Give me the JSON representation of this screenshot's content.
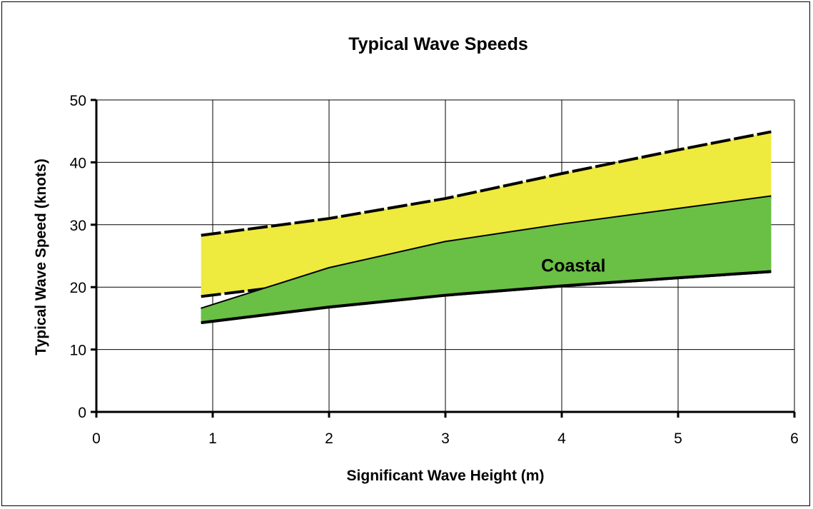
{
  "chart_data": {
    "type": "area",
    "title": "Typical Wave Speeds",
    "xlabel": "Significant Wave Height (m)",
    "ylabel": "Typical Wave Speed (knots)",
    "xlim": [
      0,
      6
    ],
    "ylim": [
      0,
      50
    ],
    "xticks": [
      "0",
      "1",
      "2",
      "3",
      "4",
      "5",
      "6"
    ],
    "yticks": [
      "0",
      "10",
      "20",
      "30",
      "40",
      "50"
    ],
    "grid": true,
    "legend": "none",
    "annotations": [
      {
        "text": "Coastal",
        "x": 4.1,
        "y": 23.5
      }
    ],
    "series": [
      {
        "style": "band",
        "color": "#eeea3e",
        "upper": {
          "x": [
            0.9,
            2.0,
            3.0,
            4.0,
            5.0,
            5.8
          ],
          "y": [
            28.3,
            31.0,
            34.2,
            38.2,
            42.0,
            44.9
          ]
        },
        "lower": {
          "x": [
            0.9,
            2.0,
            3.0,
            4.0,
            5.0,
            5.8
          ],
          "y": [
            18.5,
            21.0,
            24.5,
            28.0,
            31.5,
            34.5
          ]
        }
      },
      {
        "style": "band",
        "color": "#6abf45",
        "upper": {
          "x": [
            0.9,
            2.0,
            3.0,
            4.0,
            5.0,
            5.8
          ],
          "y": [
            16.5,
            23.0,
            27.2,
            30.0,
            32.5,
            34.5
          ]
        },
        "lower": {
          "x": [
            0.9,
            2.0,
            3.0,
            4.0,
            5.0,
            5.8
          ],
          "y": [
            14.3,
            16.8,
            18.7,
            20.2,
            21.5,
            22.5
          ]
        }
      }
    ]
  }
}
